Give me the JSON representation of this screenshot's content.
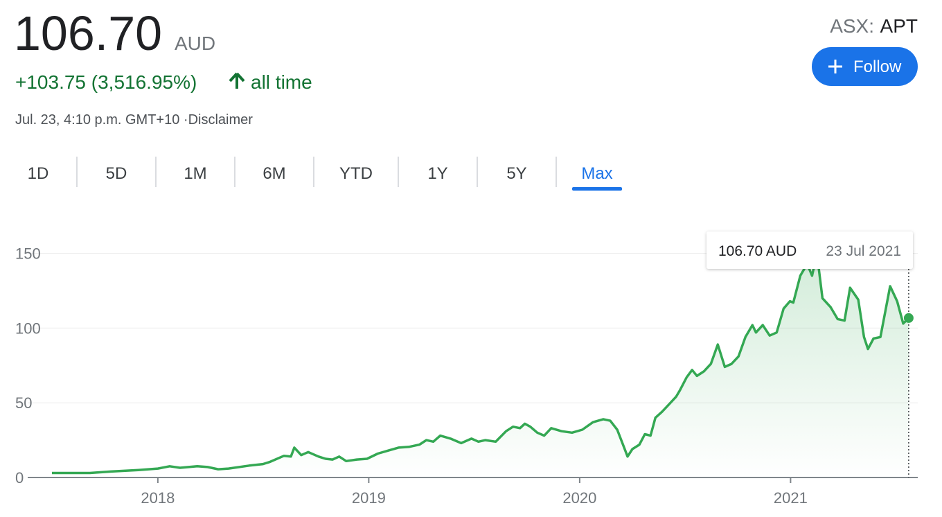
{
  "header": {
    "price": "106.70",
    "currency": "AUD",
    "change": "+103.75 (3,516.95%)",
    "period": "all time",
    "timestamp": "Jul. 23, 4:10 p.m. GMT+10 ·",
    "disclaimer": "Disclaimer",
    "exchange": "ASX:",
    "symbol": "APT",
    "follow": "Follow"
  },
  "tabs": [
    "1D",
    "5D",
    "1M",
    "6M",
    "YTD",
    "1Y",
    "5Y",
    "Max"
  ],
  "selected_tab": 7,
  "chart_data": {
    "type": "line",
    "color": "#34a853",
    "tooltip": {
      "price": "106.70 AUD",
      "date": "23 Jul 2021"
    },
    "x": [
      2017.498,
      2017.58,
      2017.678,
      2017.777,
      2017.908,
      2018.0,
      2018.056,
      2018.105,
      2018.187,
      2018.236,
      2018.286,
      2018.335,
      2018.434,
      2018.499,
      2018.532,
      2018.598,
      2018.631,
      2018.647,
      2018.68,
      2018.713,
      2018.762,
      2018.795,
      2018.828,
      2018.86,
      2018.893,
      2018.943,
      2018.992,
      2019.043,
      2019.092,
      2019.141,
      2019.191,
      2019.24,
      2019.273,
      2019.306,
      2019.339,
      2019.388,
      2019.438,
      2019.487,
      2019.52,
      2019.553,
      2019.602,
      2019.651,
      2019.684,
      2019.717,
      2019.74,
      2019.766,
      2019.799,
      2019.832,
      2019.865,
      2019.914,
      2019.964,
      2020.013,
      2020.063,
      2020.112,
      2020.145,
      2020.178,
      2020.211,
      2020.227,
      2020.25,
      2020.283,
      2020.309,
      2020.336,
      2020.359,
      2020.391,
      2020.424,
      2020.457,
      2020.474,
      2020.507,
      2020.533,
      2020.556,
      2020.589,
      2020.622,
      2020.655,
      2020.688,
      2020.72,
      2020.753,
      2020.786,
      2020.819,
      2020.836,
      2020.868,
      2020.901,
      2020.934,
      2020.967,
      2020.997,
      2021.013,
      2021.046,
      2021.079,
      2021.102,
      2021.125,
      2021.151,
      2021.19,
      2021.223,
      2021.256,
      2021.282,
      2021.321,
      2021.348,
      2021.367,
      2021.393,
      2021.426,
      2021.472,
      2021.505,
      2021.534,
      2021.56
    ],
    "values": [
      3,
      3,
      3,
      4,
      5,
      6,
      7.5,
      6.5,
      7.5,
      7,
      5.5,
      6,
      8,
      9,
      10.5,
      14.5,
      14,
      20,
      15,
      17,
      14,
      12.5,
      12,
      14,
      11,
      12,
      12.5,
      16,
      18,
      20,
      20.5,
      22,
      25,
      24,
      28,
      26,
      23,
      26,
      24,
      25,
      24,
      31,
      34,
      33,
      36,
      34,
      30,
      28,
      33,
      31,
      30,
      32,
      37,
      39,
      38,
      32,
      20,
      14,
      19,
      22,
      29,
      28,
      40,
      44,
      49,
      54,
      58,
      67,
      72,
      68,
      71,
      76,
      89,
      74,
      76,
      81,
      94,
      102,
      97,
      102,
      95,
      97,
      113,
      118,
      117,
      135,
      143,
      135,
      150,
      120,
      114,
      106,
      105,
      127,
      119,
      94,
      86,
      93,
      94,
      128,
      118,
      103,
      106.7
    ],
    "xlim": [
      2017.383,
      2021.603
    ],
    "xticks": [
      2018,
      2019,
      2020,
      2021
    ],
    "ylim": [
      0,
      160
    ],
    "yticks": [
      0,
      50,
      100,
      150
    ],
    "grid": true
  }
}
